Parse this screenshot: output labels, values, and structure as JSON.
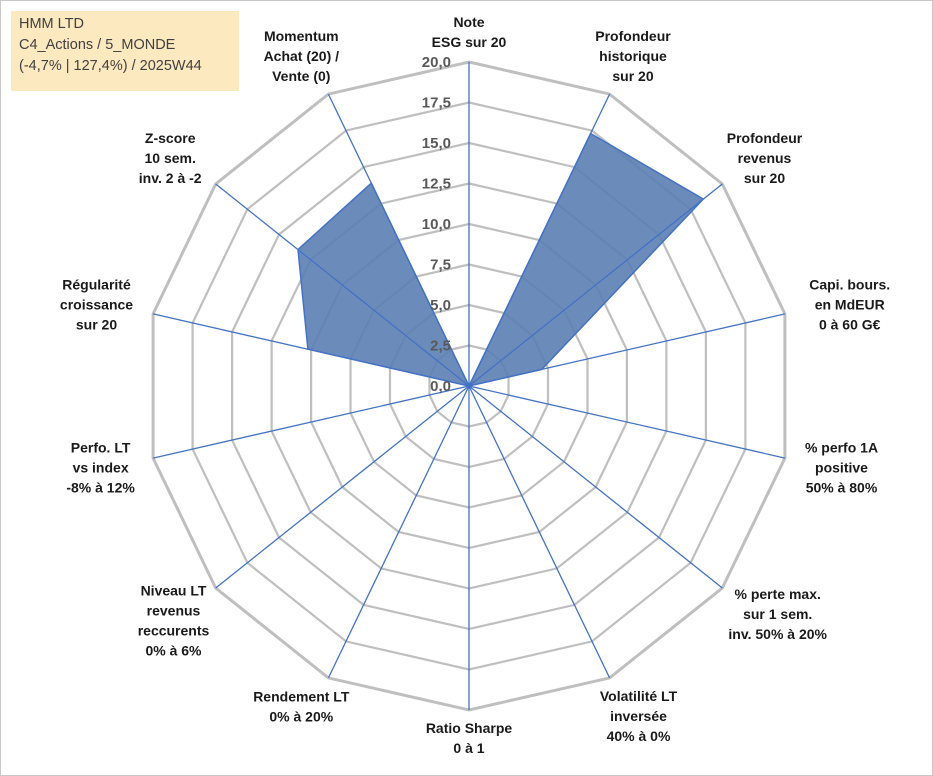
{
  "info_box": {
    "line1": "HMM LTD",
    "line2": "C4_Actions / 5_MONDE",
    "line3": "(-4,7% | 127,4%) / 2025W44"
  },
  "chart_data": {
    "type": "radar",
    "title": "",
    "range": [
      0,
      20
    ],
    "tick_values": [
      0,
      2.5,
      5,
      7.5,
      10,
      12.5,
      15,
      17.5,
      20
    ],
    "tick_labels": [
      "0,0",
      "2,5",
      "5,0",
      "7,5",
      "10,0",
      "12,5",
      "15,0",
      "17,5",
      "20,0"
    ],
    "axes": [
      [
        "Note",
        "ESG sur 20"
      ],
      [
        "Profondeur",
        "historique",
        "sur 20"
      ],
      [
        "Profondeur",
        "revenus",
        "sur 20"
      ],
      [
        "Capi. bours.",
        "en MdEUR",
        "0 à 60 G€"
      ],
      [
        "% perfo 1A",
        "positive",
        "50% à 80%"
      ],
      [
        "% perte max.",
        "sur 1 sem.",
        "inv. 50% à 20%"
      ],
      [
        "Volatilité LT",
        "inversée",
        "40% à 0%"
      ],
      [
        "Ratio Sharpe",
        "0 à 1"
      ],
      [
        "Rendement LT",
        "0% à 20%"
      ],
      [
        "Niveau LT",
        "revenus",
        "reccurents",
        "0% à 6%"
      ],
      [
        "Perfo. LT",
        "vs index",
        "-8% à 12%"
      ],
      [
        "Régularité",
        "croissance",
        "sur 20"
      ],
      [
        "Z-score",
        "10 sem.",
        "inv. 2 à -2"
      ],
      [
        "Momentum",
        "Achat (20) /",
        "Vente (0)"
      ]
    ],
    "series": [
      {
        "name": "HMM LTD",
        "values": [
          0,
          17.3,
          18.5,
          4.6,
          0,
          0,
          0,
          0,
          0,
          0,
          0,
          10.2,
          13.5,
          13.9
        ]
      }
    ],
    "colors": {
      "fill": "#5b80b3",
      "stroke": "#4472c4",
      "grid": "#bfbfbf",
      "spoke": "#4472c4"
    }
  }
}
